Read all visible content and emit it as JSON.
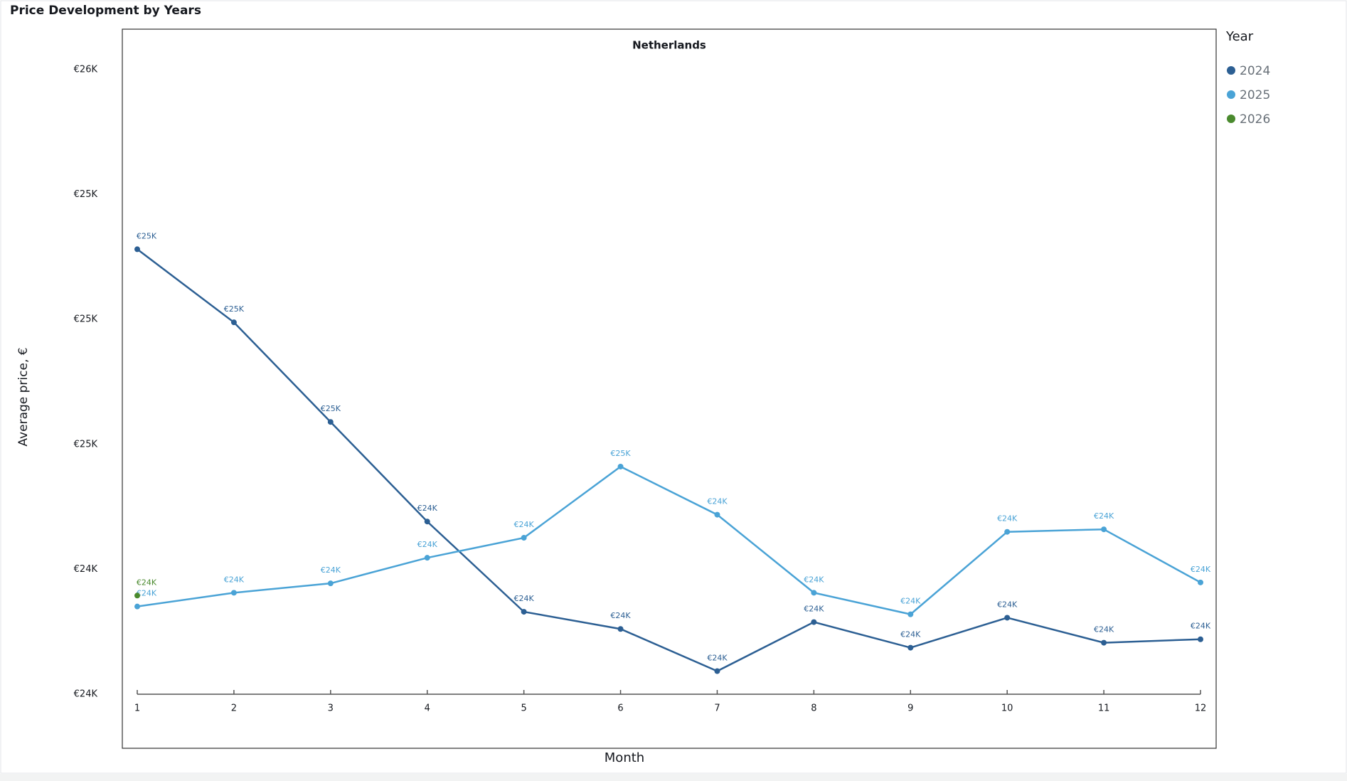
{
  "title": "Price Development by Years",
  "chart_data": {
    "type": "line",
    "title": "Netherlands",
    "x_label": "Month",
    "y_label": "Average price, €",
    "legend_title": "Year",
    "legend_position": "right",
    "x": [
      1,
      2,
      3,
      4,
      5,
      6,
      7,
      8,
      9,
      10,
      11,
      12
    ],
    "xlim": [
      1,
      12
    ],
    "xticks": [
      1,
      2,
      3,
      4,
      5,
      6,
      7,
      8,
      9,
      10,
      11,
      12
    ],
    "ylim": [
      23800,
      25800
    ],
    "yticks": [
      {
        "value": 23800,
        "label": "€24K"
      },
      {
        "value": 24200,
        "label": "€24K"
      },
      {
        "value": 24600,
        "label": "€25K"
      },
      {
        "value": 25000,
        "label": "€25K"
      },
      {
        "value": 25400,
        "label": "€25K"
      },
      {
        "value": 25800,
        "label": "€26K"
      }
    ],
    "grid": false,
    "series": [
      {
        "name": "2024",
        "color": "#2c5f93",
        "values": [
          25225,
          24991,
          24672,
          24353,
          24064,
          24009,
          23874,
          24031,
          23949,
          24045,
          23965,
          23976
        ],
        "value_labels": [
          "€25K",
          "€25K",
          "€25K",
          "€24K",
          "€24K",
          "€24K",
          "€24K",
          "€24K",
          "€24K",
          "€24K",
          "€24K",
          "€24K"
        ]
      },
      {
        "name": "2025",
        "color": "#4aa3d6",
        "values": [
          24081,
          24125,
          24155,
          24237,
          24301,
          24529,
          24375,
          24125,
          24056,
          24320,
          24328,
          24158
        ],
        "value_labels": [
          "€24K",
          "€24K",
          "€24K",
          "€24K",
          "€24K",
          "€25K",
          "€24K",
          "€24K",
          "€24K",
          "€24K",
          "€24K",
          "€24K"
        ]
      },
      {
        "name": "2026",
        "color": "#4a8a2e",
        "values": [
          24116,
          null,
          null,
          null,
          null,
          null,
          null,
          null,
          null,
          null,
          null,
          null
        ],
        "value_labels": [
          "€24K",
          null,
          null,
          null,
          null,
          null,
          null,
          null,
          null,
          null,
          null,
          null
        ]
      }
    ]
  }
}
